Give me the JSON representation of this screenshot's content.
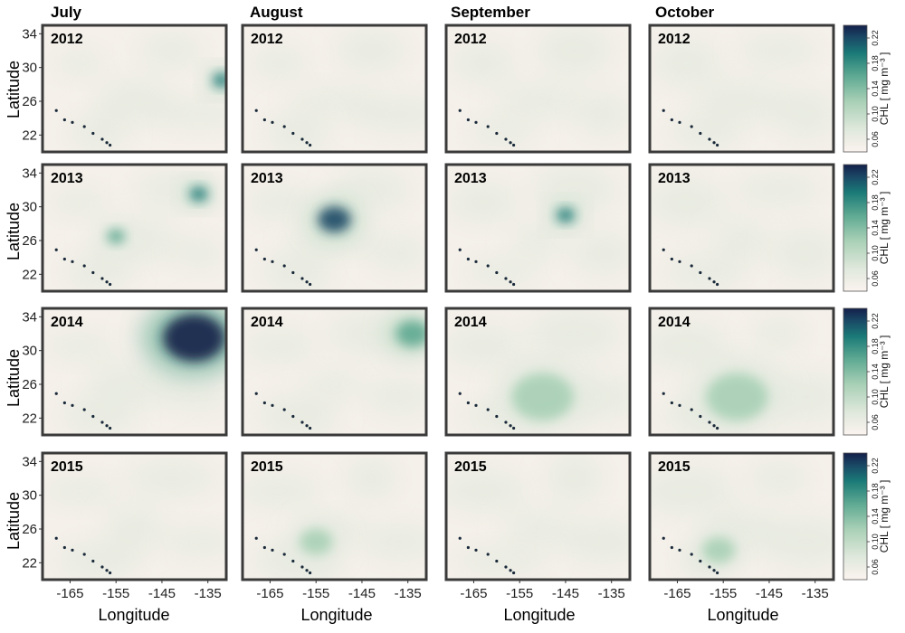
{
  "chart_data": {
    "type": "heatmap",
    "months": [
      "July",
      "August",
      "September",
      "October"
    ],
    "years": [
      "2012",
      "2013",
      "2014",
      "2015"
    ],
    "xlabel": "Longitude",
    "ylabel": "Latitude",
    "xticks": [
      -165,
      -155,
      -145,
      -135
    ],
    "yticks": [
      22,
      26,
      30,
      34
    ],
    "xlim": [
      -171,
      -131
    ],
    "ylim": [
      20,
      35
    ],
    "colorbar": {
      "title": "CHL [ mg m⁻³ ]",
      "ticks": [
        "0.06",
        "0.10",
        "0.14",
        "0.18",
        "0.22"
      ],
      "range": [
        0.04,
        0.24
      ],
      "colors": [
        "#fbf3ef",
        "#dfe8dc",
        "#a8d0b6",
        "#5ea992",
        "#1a7a77",
        "#1a4a66",
        "#14204a"
      ]
    },
    "islands": [
      [
        -168.0,
        24.9
      ],
      [
        -166.2,
        23.8
      ],
      [
        -164.5,
        23.5
      ],
      [
        -161.9,
        23.0
      ],
      [
        -160.0,
        22.2
      ],
      [
        -158.0,
        21.5
      ],
      [
        -157.0,
        21.1
      ],
      [
        -156.3,
        20.8
      ],
      [
        -155.5,
        19.6
      ]
    ],
    "chl_features": [
      {
        "month": "July",
        "year": "2012",
        "lon": -132,
        "lat": 28.5,
        "peak": 0.18,
        "extent": "small"
      },
      {
        "month": "July",
        "year": "2013",
        "lon": -137,
        "lat": 31.5,
        "peak": 0.16,
        "extent": "small"
      },
      {
        "month": "July",
        "year": "2013",
        "lon": -155,
        "lat": 26.5,
        "peak": 0.13,
        "extent": "small"
      },
      {
        "month": "August",
        "year": "2013",
        "lon": -151,
        "lat": 28.5,
        "peak": 0.2,
        "extent": "medium"
      },
      {
        "month": "September",
        "year": "2013",
        "lon": -145,
        "lat": 29.0,
        "peak": 0.17,
        "extent": "small"
      },
      {
        "month": "July",
        "year": "2014",
        "lon": -138,
        "lat": 31.5,
        "peak": 0.24,
        "extent": "large"
      },
      {
        "month": "August",
        "year": "2014",
        "lon": -134,
        "lat": 32.0,
        "peak": 0.15,
        "extent": "medium"
      },
      {
        "month": "September",
        "year": "2014",
        "lon": -150,
        "lat": 24.5,
        "peak": 0.1,
        "extent": "large"
      },
      {
        "month": "October",
        "year": "2014",
        "lon": -152,
        "lat": 24.5,
        "peak": 0.1,
        "extent": "large"
      },
      {
        "month": "August",
        "year": "2015",
        "lon": -155,
        "lat": 24.5,
        "peak": 0.1,
        "extent": "medium"
      },
      {
        "month": "October",
        "year": "2015",
        "lon": -156,
        "lat": 23.5,
        "peak": 0.1,
        "extent": "medium"
      }
    ]
  }
}
